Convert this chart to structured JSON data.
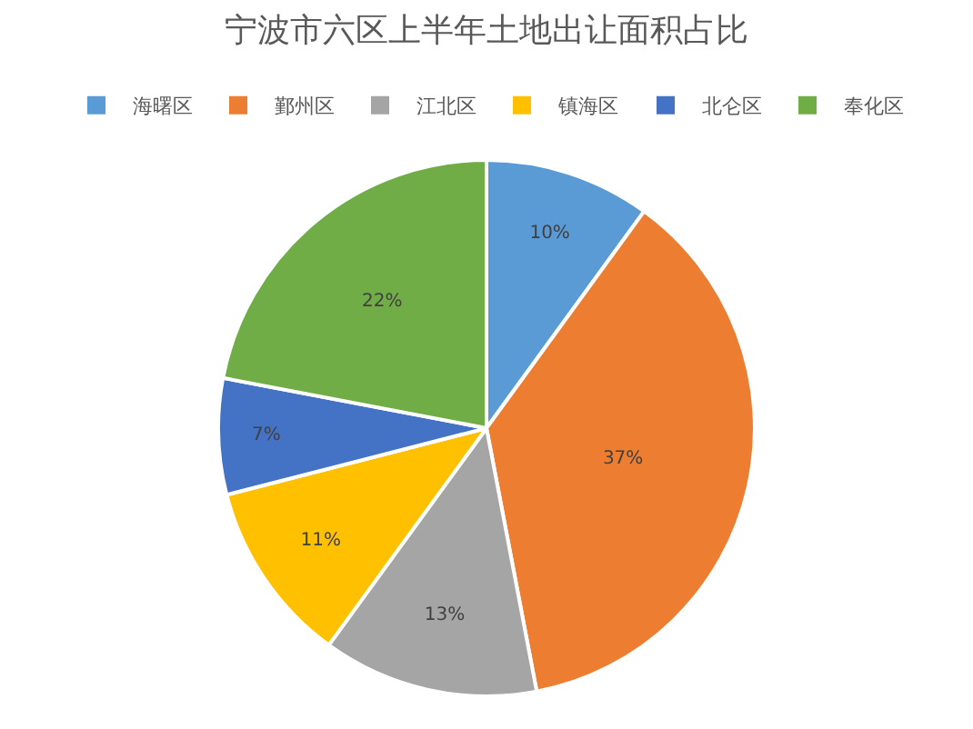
{
  "chart_data": {
    "type": "pie",
    "title": "宁波市六区上半年土地出让面积占比",
    "categories": [
      "海曙区",
      "鄞州区",
      "江北区",
      "镇海区",
      "北仑区",
      "奉化区"
    ],
    "values": [
      10,
      37,
      13,
      11,
      7,
      22
    ],
    "value_labels": [
      "10%",
      "37%",
      "13%",
      "11%",
      "7%",
      "22%"
    ],
    "colors": [
      "#5b9bd5",
      "#ed7d31",
      "#a5a5a5",
      "#ffc000",
      "#4472c4",
      "#70ad47"
    ],
    "legend": "top"
  }
}
